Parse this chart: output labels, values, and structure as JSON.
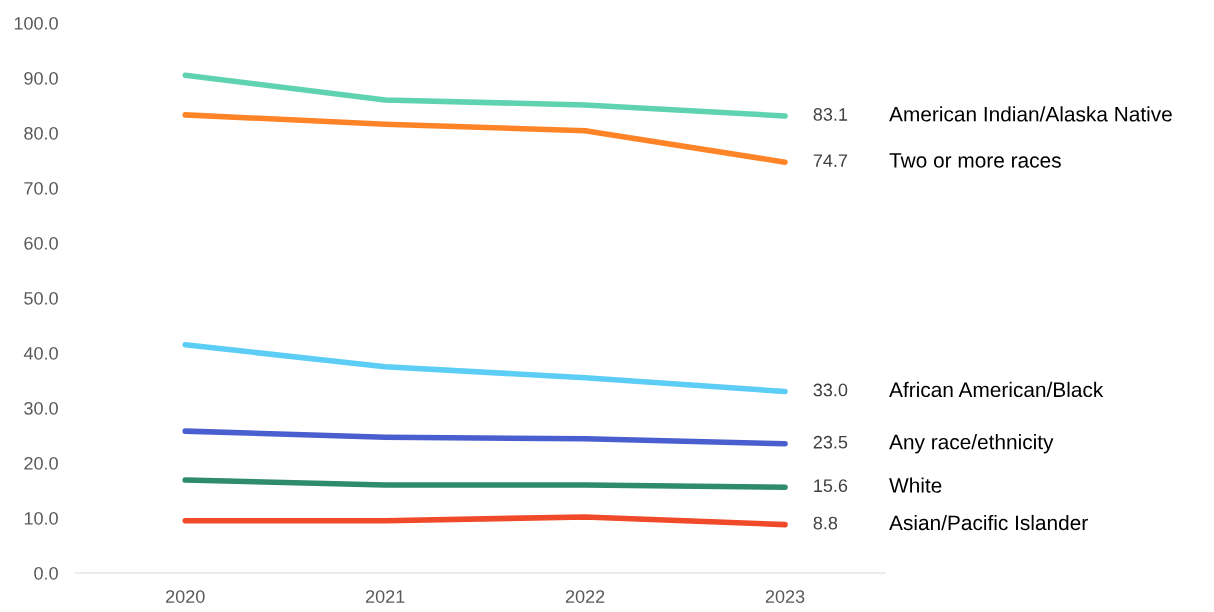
{
  "chart_data": {
    "type": "line",
    "categories": [
      "2020",
      "2021",
      "2022",
      "2023"
    ],
    "ylim": [
      0,
      100
    ],
    "yticks": [
      {
        "value": 0,
        "label": "0.0"
      },
      {
        "value": 10,
        "label": "10.0"
      },
      {
        "value": 20,
        "label": "20.0"
      },
      {
        "value": 30,
        "label": "30.0"
      },
      {
        "value": 40,
        "label": "40.0"
      },
      {
        "value": 50,
        "label": "50.0"
      },
      {
        "value": 60,
        "label": "60.0"
      },
      {
        "value": 70,
        "label": "70.0"
      },
      {
        "value": 80,
        "label": "80.0"
      },
      {
        "value": 90,
        "label": "90.0"
      },
      {
        "value": 100,
        "label": "100.0"
      }
    ],
    "grid": false,
    "legend": false,
    "marker": "none",
    "line_style": "solid",
    "series": [
      {
        "name": "American Indian/Alaska Native",
        "color": "#5fd3b0",
        "values": [
          90.5,
          86.0,
          85.1,
          83.1
        ],
        "value_labels": [
          null,
          null,
          null,
          "83.1"
        ]
      },
      {
        "name": "Two or more races",
        "color": "#ff8427",
        "values": [
          83.3,
          81.6,
          80.4,
          74.7
        ],
        "value_labels": [
          null,
          null,
          null,
          "74.7"
        ]
      },
      {
        "name": "African American/Black",
        "color": "#5ccdf5",
        "values": [
          41.5,
          37.5,
          35.5,
          33.0
        ],
        "value_labels": [
          null,
          null,
          null,
          "33.0"
        ]
      },
      {
        "name": "Any race/ethnicity",
        "color": "#4a5fcf",
        "values": [
          25.8,
          24.7,
          24.4,
          23.5
        ],
        "value_labels": [
          null,
          null,
          null,
          "23.5"
        ]
      },
      {
        "name": "White",
        "color": "#2e8b6b",
        "values": [
          16.9,
          16.0,
          16.0,
          15.6
        ],
        "value_labels": [
          null,
          null,
          null,
          "15.6"
        ]
      },
      {
        "name": "Asian/Pacific Islander",
        "color": "#f04a2a",
        "values": [
          9.5,
          9.5,
          10.2,
          8.8
        ],
        "value_labels": [
          null,
          null,
          null,
          "8.8"
        ]
      }
    ]
  }
}
